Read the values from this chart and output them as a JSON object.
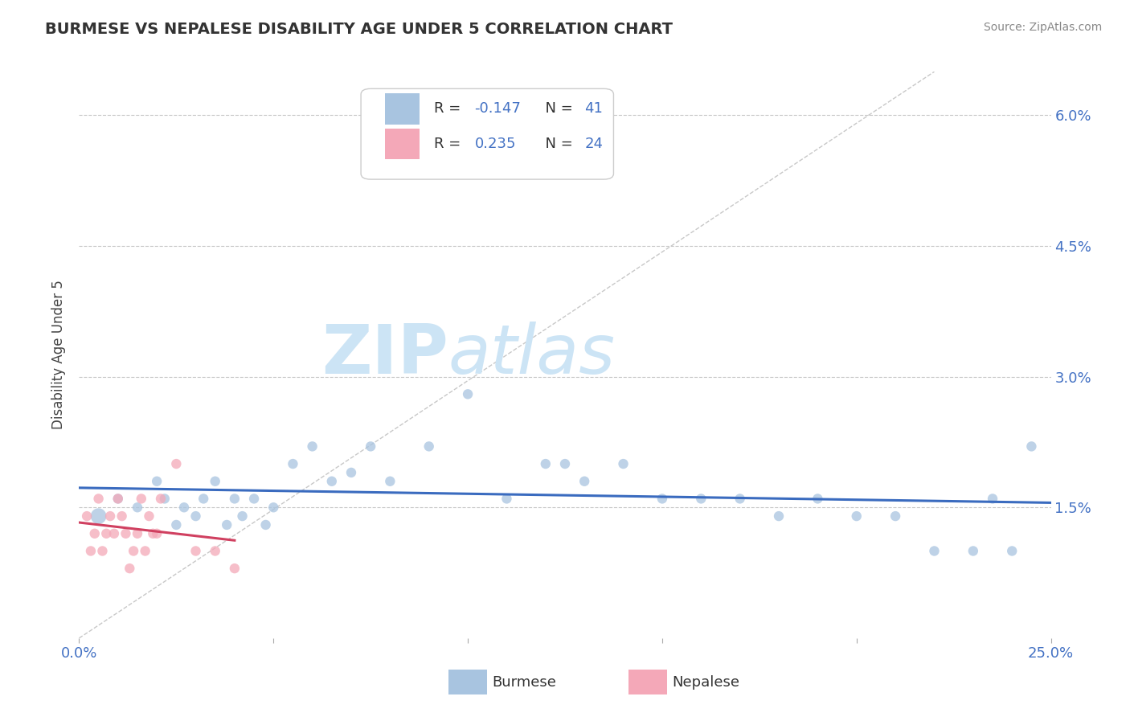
{
  "title": "BURMESE VS NEPALESE DISABILITY AGE UNDER 5 CORRELATION CHART",
  "source_text": "Source: ZipAtlas.com",
  "ylabel": "Disability Age Under 5",
  "xlim": [
    0.0,
    0.25
  ],
  "ylim": [
    0.0,
    0.065
  ],
  "xtick_positions": [
    0.0,
    0.05,
    0.1,
    0.15,
    0.2,
    0.25
  ],
  "xtick_labels": [
    "0.0%",
    "",
    "",
    "",
    "",
    "25.0%"
  ],
  "ytick_positions": [
    0.0,
    0.015,
    0.03,
    0.045,
    0.06
  ],
  "ytick_labels": [
    "",
    "1.5%",
    "3.0%",
    "4.5%",
    "6.0%"
  ],
  "burmese_R": -0.147,
  "burmese_N": 41,
  "nepalese_R": 0.235,
  "nepalese_N": 24,
  "burmese_color": "#a8c4e0",
  "nepalese_color": "#f4a8b8",
  "burmese_line_color": "#3a6bbf",
  "nepalese_line_color": "#d04060",
  "diag_line_color": "#c8c8c8",
  "watermark_color": "#cce4f5",
  "legend_box_color": "#cccccc",
  "burmese_x": [
    0.005,
    0.01,
    0.015,
    0.02,
    0.022,
    0.025,
    0.027,
    0.03,
    0.032,
    0.035,
    0.038,
    0.04,
    0.042,
    0.045,
    0.048,
    0.05,
    0.055,
    0.06,
    0.065,
    0.07,
    0.075,
    0.08,
    0.09,
    0.1,
    0.11,
    0.12,
    0.125,
    0.13,
    0.14,
    0.15,
    0.16,
    0.17,
    0.18,
    0.19,
    0.2,
    0.21,
    0.22,
    0.23,
    0.235,
    0.24,
    0.245
  ],
  "burmese_y": [
    0.014,
    0.016,
    0.015,
    0.018,
    0.016,
    0.013,
    0.015,
    0.014,
    0.016,
    0.018,
    0.013,
    0.016,
    0.014,
    0.016,
    0.013,
    0.015,
    0.02,
    0.022,
    0.018,
    0.019,
    0.022,
    0.018,
    0.022,
    0.028,
    0.016,
    0.02,
    0.02,
    0.018,
    0.02,
    0.016,
    0.016,
    0.016,
    0.014,
    0.016,
    0.014,
    0.014,
    0.01,
    0.01,
    0.016,
    0.01,
    0.022
  ],
  "burmese_sizes": [
    200,
    80,
    80,
    80,
    80,
    80,
    80,
    80,
    80,
    80,
    80,
    80,
    80,
    80,
    80,
    80,
    80,
    80,
    80,
    80,
    80,
    80,
    80,
    80,
    80,
    80,
    80,
    80,
    80,
    80,
    80,
    80,
    80,
    80,
    80,
    80,
    80,
    80,
    80,
    80,
    80
  ],
  "nepalese_x": [
    0.002,
    0.003,
    0.004,
    0.005,
    0.006,
    0.007,
    0.008,
    0.009,
    0.01,
    0.011,
    0.012,
    0.013,
    0.014,
    0.015,
    0.016,
    0.017,
    0.018,
    0.019,
    0.02,
    0.021,
    0.025,
    0.03,
    0.035,
    0.04
  ],
  "nepalese_y": [
    0.014,
    0.01,
    0.012,
    0.016,
    0.01,
    0.012,
    0.014,
    0.012,
    0.016,
    0.014,
    0.012,
    0.008,
    0.01,
    0.012,
    0.016,
    0.01,
    0.014,
    0.012,
    0.012,
    0.016,
    0.02,
    0.01,
    0.01,
    0.008
  ],
  "nepalese_sizes": [
    80,
    80,
    80,
    80,
    80,
    80,
    80,
    80,
    80,
    80,
    80,
    80,
    80,
    80,
    80,
    80,
    80,
    80,
    80,
    80,
    80,
    80,
    80,
    80
  ]
}
